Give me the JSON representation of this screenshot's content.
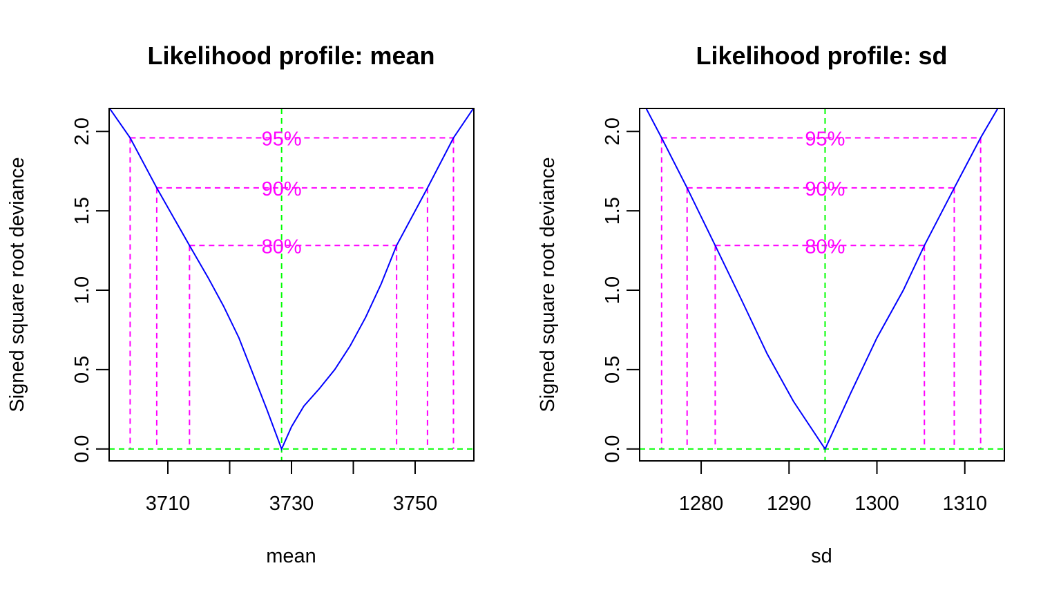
{
  "colors": {
    "profile_line": "#0000FF",
    "confidence_lines": "#FF00FF",
    "mle_lines": "#00FF00",
    "axes": "#000000"
  },
  "chart_data": [
    {
      "type": "line",
      "title": "Likelihood profile: mean",
      "xlabel": "mean",
      "ylabel": "Signed square root deviance",
      "xlim": [
        3700.5,
        3759.5
      ],
      "ylim": [
        -0.075,
        2.145
      ],
      "x_ticks": [
        3710,
        3720,
        3730,
        3740,
        3750
      ],
      "x_tick_labels": [
        "3710",
        "",
        "3730",
        "",
        "3750"
      ],
      "y_ticks": [
        0.0,
        0.5,
        1.0,
        1.5,
        2.0
      ],
      "y_tick_labels": [
        "0.0",
        "0.5",
        "1.0",
        "1.5",
        "2.0"
      ],
      "grid": false,
      "mle": 3728.4,
      "series": [
        {
          "x": [
            3700.5,
            3703.9,
            3708.2,
            3713.5,
            3716.5,
            3719.0,
            3721.5,
            3723.8,
            3726.0,
            3728.4,
            3730.0,
            3732.0,
            3734.5,
            3737.0,
            3739.5,
            3742.0,
            3744.5,
            3747.0,
            3752.0,
            3756.2,
            3759.5
          ],
          "y": [
            2.15,
            1.96,
            1.645,
            1.282,
            1.08,
            0.9,
            0.7,
            0.47,
            0.25,
            0.0,
            0.14,
            0.27,
            0.38,
            0.5,
            0.65,
            0.83,
            1.04,
            1.282,
            1.645,
            1.96,
            2.15
          ]
        }
      ],
      "levels": [
        {
          "label": "95%",
          "y": 1.96,
          "lower": 3703.9,
          "upper": 3756.2
        },
        {
          "label": "90%",
          "y": 1.645,
          "lower": 3708.2,
          "upper": 3752.0
        },
        {
          "label": "80%",
          "y": 1.282,
          "lower": 3713.5,
          "upper": 3747.0
        }
      ]
    },
    {
      "type": "line",
      "title": "Likelihood profile: sd",
      "xlabel": "sd",
      "ylabel": "Signed square root deviance",
      "xlim": [
        1273.0,
        1314.5
      ],
      "ylim": [
        -0.075,
        2.145
      ],
      "x_ticks": [
        1280,
        1290,
        1300,
        1310
      ],
      "x_tick_labels": [
        "1280",
        "1290",
        "1300",
        "1310"
      ],
      "y_ticks": [
        0.0,
        0.5,
        1.0,
        1.5,
        2.0
      ],
      "y_tick_labels": [
        "0.0",
        "0.5",
        "1.0",
        "1.5",
        "2.0"
      ],
      "grid": false,
      "mle": 1294.1,
      "series": [
        {
          "x": [
            1273.7,
            1275.5,
            1278.4,
            1281.6,
            1284.5,
            1287.5,
            1290.5,
            1294.1,
            1297.0,
            1300.0,
            1303.0,
            1305.4,
            1308.8,
            1311.8,
            1313.8
          ],
          "y": [
            2.15,
            1.96,
            1.645,
            1.282,
            0.95,
            0.6,
            0.3,
            0.0,
            0.35,
            0.7,
            1.0,
            1.282,
            1.645,
            1.96,
            2.15
          ]
        }
      ],
      "levels": [
        {
          "label": "95%",
          "y": 1.96,
          "lower": 1275.5,
          "upper": 1311.8
        },
        {
          "label": "90%",
          "y": 1.645,
          "lower": 1278.4,
          "upper": 1308.8
        },
        {
          "label": "80%",
          "y": 1.282,
          "lower": 1281.6,
          "upper": 1305.4
        }
      ]
    }
  ]
}
